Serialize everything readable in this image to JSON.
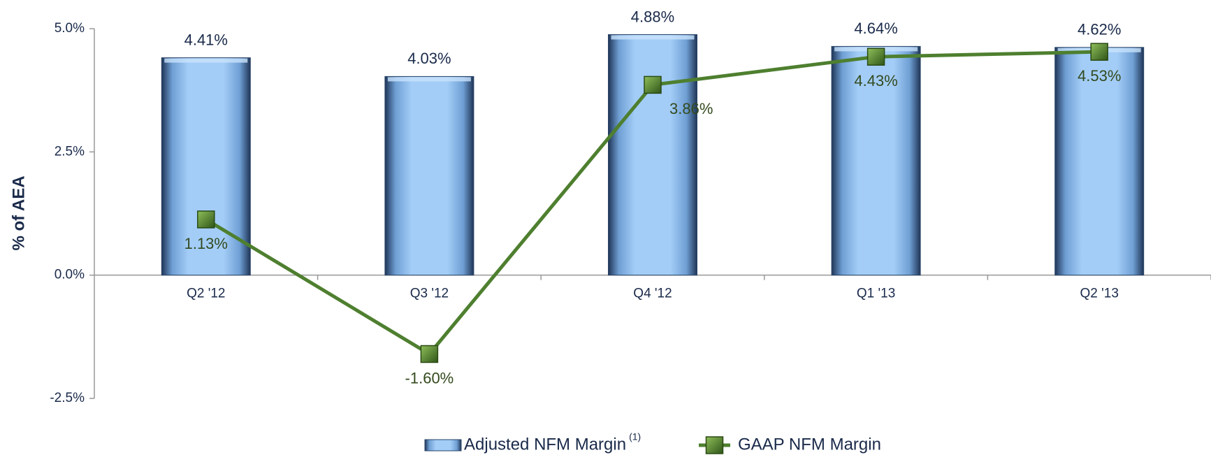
{
  "chart_data": {
    "type": "bar_line",
    "y_label": "% of AEA",
    "categories": [
      "Q2 '12",
      "Q3 '12",
      "Q4 '12",
      "Q1 '13",
      "Q2 '13"
    ],
    "series": [
      {
        "name": "Adjusted NFM Margin",
        "name_note": "(1)",
        "type": "bar",
        "color": "#9ec9f5",
        "values": [
          4.41,
          4.03,
          4.88,
          4.64,
          4.62
        ],
        "value_labels": [
          "4.41%",
          "4.03%",
          "4.88%",
          "4.64%",
          "4.62%"
        ]
      },
      {
        "name": "GAAP NFM Margin",
        "type": "line",
        "color": "#4e7f2f",
        "values": [
          1.13,
          -1.6,
          3.86,
          4.43,
          4.53
        ],
        "value_labels": [
          "1.13%",
          "-1.60%",
          "3.86%",
          "4.43%",
          "4.53%"
        ]
      }
    ],
    "ylim": [
      -2.5,
      5
    ],
    "yticks": [
      {
        "value": -2.5,
        "label": "-2.5%"
      },
      {
        "value": 0,
        "label": "0.0%"
      },
      {
        "value": 2.5,
        "label": "2.5%"
      },
      {
        "value": 5,
        "label": "5.0%"
      }
    ],
    "legend": "bottom"
  }
}
